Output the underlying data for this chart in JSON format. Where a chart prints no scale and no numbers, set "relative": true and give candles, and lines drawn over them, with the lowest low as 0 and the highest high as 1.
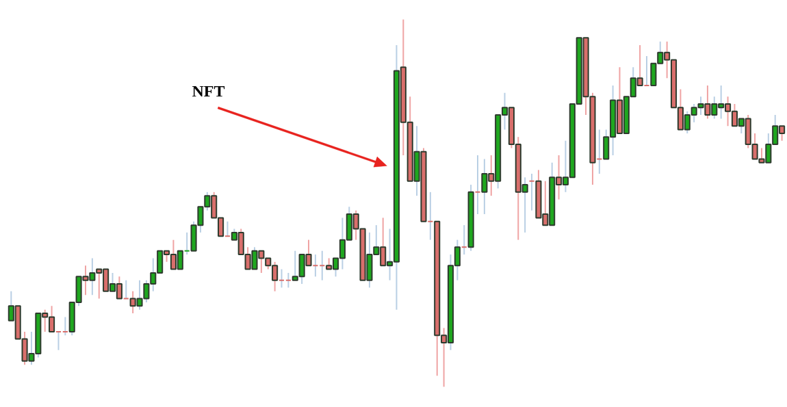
{
  "chart_data": {
    "type": "candlestick",
    "relative": true,
    "annotations": [
      "NFT"
    ],
    "categories": [
      null,
      null,
      null,
      null,
      null,
      null,
      null,
      null,
      null,
      null,
      null,
      null,
      null,
      null,
      null,
      null,
      null,
      null,
      null,
      null,
      null,
      null,
      null,
      null,
      null,
      null,
      null,
      null,
      null,
      null,
      null,
      null,
      null,
      null,
      null,
      null,
      null,
      null,
      null,
      null,
      null,
      null,
      null,
      null,
      null,
      null,
      null,
      null,
      null,
      null,
      null,
      null,
      null,
      null,
      null,
      null,
      null,
      null,
      null,
      null,
      null,
      null,
      null,
      null,
      null,
      null,
      null,
      null,
      null,
      null,
      null,
      null,
      null,
      null,
      null,
      null,
      null,
      null,
      null,
      null,
      null,
      null,
      null,
      null,
      null,
      null,
      null,
      null,
      null,
      null,
      null,
      null,
      null,
      null,
      null,
      null,
      null,
      null,
      null,
      null,
      null,
      null,
      null,
      null,
      null,
      null,
      null,
      null,
      null,
      null,
      null,
      null,
      null,
      null,
      null
    ],
    "colors": [
      "#1fa71f",
      "#d96f6c",
      "#d96f6c",
      "#1fa71f",
      "#1fa71f",
      "#d96f6c",
      "#d96f6c",
      "#d96f6c",
      "#d96f6c",
      "#1fa71f",
      "#1fa71f",
      "#d96f6c",
      "#1fa71f",
      "#d96f6c",
      "#d96f6c",
      "#1fa71f",
      "#d96f6c",
      "#d96f6c",
      "#d96f6c",
      "#1fa71f",
      "#1fa71f",
      "#1fa71f",
      "#1fa71f",
      "#d96f6c",
      "#d96f6c",
      "#1fa71f",
      "#1fa71f",
      "#1fa71f",
      "#1fa71f",
      "#1fa71f",
      "#d96f6c",
      "#d96f6c",
      "#d96f6c",
      "#1fa71f",
      "#d96f6c",
      "#d96f6c",
      "#1fa71f",
      "#d96f6c",
      "#d96f6c",
      "#d96f6c",
      "#d96f6c",
      "#d96f6c",
      "#1fa71f",
      "#1fa71f",
      "#d96f6c",
      "#d96f6c",
      "#d96f6c",
      "#d96f6c",
      "#1fa71f",
      "#1fa71f",
      "#1fa71f",
      "#d96f6c",
      "#d96f6c",
      "#1fa71f",
      "#1fa71f",
      "#d96f6c",
      "#1fa71f",
      "#1fa71f",
      "#d96f6c",
      "#d96f6c",
      "#1fa71f",
      "#d96f6c",
      "#d96f6c",
      "#d96f6c",
      "#d96f6c",
      "#1fa71f",
      "#1fa71f",
      "#d96f6c",
      "#1fa71f",
      "#d96f6c",
      "#1fa71f",
      "#d96f6c",
      "#1fa71f",
      "#1fa71f",
      "#d96f6c",
      "#d96f6c",
      "#1fa71f",
      "#d96f6c",
      "#d96f6c",
      "#d96f6c",
      "#1fa71f",
      "#d96f6c",
      "#1fa71f",
      "#1fa71f",
      "#1fa71f",
      "#d96f6c",
      "#d96f6c",
      "#d96f6c",
      "#1fa71f",
      "#1fa71f",
      "#d96f6c",
      "#1fa71f",
      "#1fa71f",
      "#d96f6c",
      "#d96f6c",
      "#1fa71f",
      "#1fa71f",
      "#d96f6c",
      "#d96f6c",
      "#d96f6c",
      "#1fa71f",
      "#1fa71f",
      "#1fa71f",
      "#d96f6c",
      "#1fa71f",
      "#1fa71f",
      "#d96f6c",
      "#d96f6c",
      "#1fa71f",
      "#d96f6c",
      "#d96f6c",
      "#d96f6c",
      "#1fa71f",
      "#1fa71f",
      "#d96f6c"
    ],
    "ohlc": [
      [
        0.18,
        0.26,
        0.18,
        0.22
      ],
      [
        0.22,
        0.22,
        0.13,
        0.13
      ],
      [
        0.13,
        0.15,
        0.06,
        0.07
      ],
      [
        0.07,
        0.15,
        0.06,
        0.09
      ],
      [
        0.09,
        0.2,
        0.08,
        0.2
      ],
      [
        0.2,
        0.21,
        0.15,
        0.19
      ],
      [
        0.19,
        0.22,
        0.15,
        0.15
      ],
      [
        0.15,
        0.15,
        0.1,
        0.15
      ],
      [
        0.15,
        0.19,
        0.14,
        0.15
      ],
      [
        0.15,
        0.23,
        0.14,
        0.23
      ],
      [
        0.23,
        0.3,
        0.22,
        0.3
      ],
      [
        0.3,
        0.33,
        0.25,
        0.29
      ],
      [
        0.29,
        0.35,
        0.25,
        0.31
      ],
      [
        0.32,
        0.32,
        0.24,
        0.31
      ],
      [
        0.32,
        0.32,
        0.26,
        0.26
      ],
      [
        0.26,
        0.31,
        0.26,
        0.28
      ],
      [
        0.28,
        0.3,
        0.24,
        0.24
      ],
      [
        0.24,
        0.29,
        0.24,
        0.24
      ],
      [
        0.24,
        0.26,
        0.2,
        0.22
      ],
      [
        0.22,
        0.29,
        0.21,
        0.24
      ],
      [
        0.24,
        0.29,
        0.23,
        0.28
      ],
      [
        0.28,
        0.35,
        0.26,
        0.31
      ],
      [
        0.31,
        0.37,
        0.31,
        0.37
      ],
      [
        0.37,
        0.37,
        0.34,
        0.36
      ],
      [
        0.36,
        0.4,
        0.32,
        0.32
      ],
      [
        0.32,
        0.37,
        0.32,
        0.37
      ],
      [
        0.37,
        0.42,
        0.36,
        0.37
      ],
      [
        0.37,
        0.45,
        0.37,
        0.44
      ],
      [
        0.44,
        0.49,
        0.42,
        0.49
      ],
      [
        0.49,
        0.53,
        0.48,
        0.52
      ],
      [
        0.52,
        0.53,
        0.46,
        0.46
      ],
      [
        0.46,
        0.46,
        0.41,
        0.41
      ],
      [
        0.41,
        0.45,
        0.41,
        0.41
      ],
      [
        0.4,
        0.43,
        0.4,
        0.42
      ],
      [
        0.42,
        0.43,
        0.36,
        0.36
      ],
      [
        0.36,
        0.38,
        0.32,
        0.32
      ],
      [
        0.32,
        0.38,
        0.32,
        0.37
      ],
      [
        0.37,
        0.37,
        0.31,
        0.35
      ],
      [
        0.35,
        0.35,
        0.32,
        0.33
      ],
      [
        0.33,
        0.34,
        0.26,
        0.29
      ],
      [
        0.29,
        0.32,
        0.27,
        0.29
      ],
      [
        0.29,
        0.31,
        0.27,
        0.29
      ],
      [
        0.29,
        0.37,
        0.29,
        0.3
      ],
      [
        0.3,
        0.36,
        0.28,
        0.36
      ],
      [
        0.36,
        0.4,
        0.33,
        0.33
      ],
      [
        0.33,
        0.36,
        0.3,
        0.33
      ],
      [
        0.33,
        0.37,
        0.29,
        0.33
      ],
      [
        0.33,
        0.35,
        0.32,
        0.32
      ],
      [
        0.32,
        0.35,
        0.3,
        0.35
      ],
      [
        0.35,
        0.46,
        0.32,
        0.4
      ],
      [
        0.4,
        0.49,
        0.4,
        0.47
      ],
      [
        0.47,
        0.48,
        0.4,
        0.43
      ],
      [
        0.43,
        0.43,
        0.29,
        0.29
      ],
      [
        0.29,
        0.42,
        0.27,
        0.36
      ],
      [
        0.36,
        0.44,
        0.36,
        0.38
      ],
      [
        0.38,
        0.46,
        0.33,
        0.33
      ],
      [
        0.33,
        0.43,
        0.29,
        0.34
      ],
      [
        0.34,
        0.93,
        0.21,
        0.86
      ],
      [
        0.87,
        1.0,
        0.63,
        0.72
      ],
      [
        0.72,
        0.79,
        0.56,
        0.56
      ],
      [
        0.56,
        0.71,
        0.52,
        0.64
      ],
      [
        0.64,
        0.65,
        0.45,
        0.45
      ],
      [
        0.45,
        0.53,
        0.4,
        0.45
      ],
      [
        0.45,
        0.45,
        0.03,
        0.14
      ],
      [
        0.14,
        0.16,
        0.0,
        0.12
      ],
      [
        0.12,
        0.36,
        0.1,
        0.33
      ],
      [
        0.33,
        0.4,
        0.29,
        0.38
      ],
      [
        0.38,
        0.44,
        0.36,
        0.38
      ],
      [
        0.38,
        0.55,
        0.37,
        0.53
      ],
      [
        0.53,
        0.63,
        0.47,
        0.53
      ],
      [
        0.53,
        0.62,
        0.47,
        0.58
      ],
      [
        0.58,
        0.63,
        0.52,
        0.56
      ],
      [
        0.56,
        0.74,
        0.54,
        0.74
      ],
      [
        0.74,
        0.8,
        0.7,
        0.76
      ],
      [
        0.76,
        0.76,
        0.65,
        0.66
      ],
      [
        0.66,
        0.68,
        0.4,
        0.53
      ],
      [
        0.53,
        0.57,
        0.42,
        0.55
      ],
      [
        0.56,
        0.58,
        0.48,
        0.56
      ],
      [
        0.56,
        0.59,
        0.46,
        0.46
      ],
      [
        0.47,
        0.56,
        0.44,
        0.44
      ],
      [
        0.44,
        0.61,
        0.44,
        0.57
      ],
      [
        0.57,
        0.63,
        0.51,
        0.55
      ],
      [
        0.55,
        0.67,
        0.53,
        0.57
      ],
      [
        0.57,
        0.77,
        0.57,
        0.77
      ],
      [
        0.77,
        0.95,
        0.77,
        0.95
      ],
      [
        0.95,
        0.95,
        0.74,
        0.79
      ],
      [
        0.79,
        0.8,
        0.55,
        0.61
      ],
      [
        0.62,
        0.7,
        0.58,
        0.62
      ],
      [
        0.62,
        0.7,
        0.62,
        0.68
      ],
      [
        0.68,
        0.82,
        0.63,
        0.78
      ],
      [
        0.78,
        0.87,
        0.69,
        0.69
      ],
      [
        0.69,
        0.79,
        0.69,
        0.79
      ],
      [
        0.79,
        0.87,
        0.79,
        0.84
      ],
      [
        0.84,
        0.93,
        0.82,
        0.82
      ],
      [
        0.82,
        0.9,
        0.82,
        0.82
      ],
      [
        0.82,
        0.88,
        0.82,
        0.88
      ],
      [
        0.88,
        0.94,
        0.88,
        0.91
      ],
      [
        0.91,
        0.94,
        0.84,
        0.89
      ],
      [
        0.89,
        0.89,
        0.76,
        0.76
      ],
      [
        0.76,
        0.81,
        0.7,
        0.7
      ],
      [
        0.7,
        0.75,
        0.69,
        0.74
      ],
      [
        0.74,
        0.77,
        0.72,
        0.76
      ],
      [
        0.76,
        0.79,
        0.74,
        0.77
      ],
      [
        0.77,
        0.82,
        0.73,
        0.74
      ],
      [
        0.74,
        0.79,
        0.73,
        0.77
      ],
      [
        0.76,
        0.82,
        0.73,
        0.77
      ],
      [
        0.77,
        0.79,
        0.71,
        0.75
      ],
      [
        0.75,
        0.77,
        0.71,
        0.71
      ],
      [
        0.71,
        0.73,
        0.69,
        0.73
      ],
      [
        0.73,
        0.74,
        0.65,
        0.66
      ],
      [
        0.66,
        0.69,
        0.62,
        0.62
      ],
      [
        0.62,
        0.65,
        0.61,
        0.61
      ],
      [
        0.61,
        0.69,
        0.61,
        0.66
      ],
      [
        0.66,
        0.74,
        0.66,
        0.71
      ],
      [
        0.71,
        0.71,
        0.67,
        0.69
      ]
    ]
  }
}
